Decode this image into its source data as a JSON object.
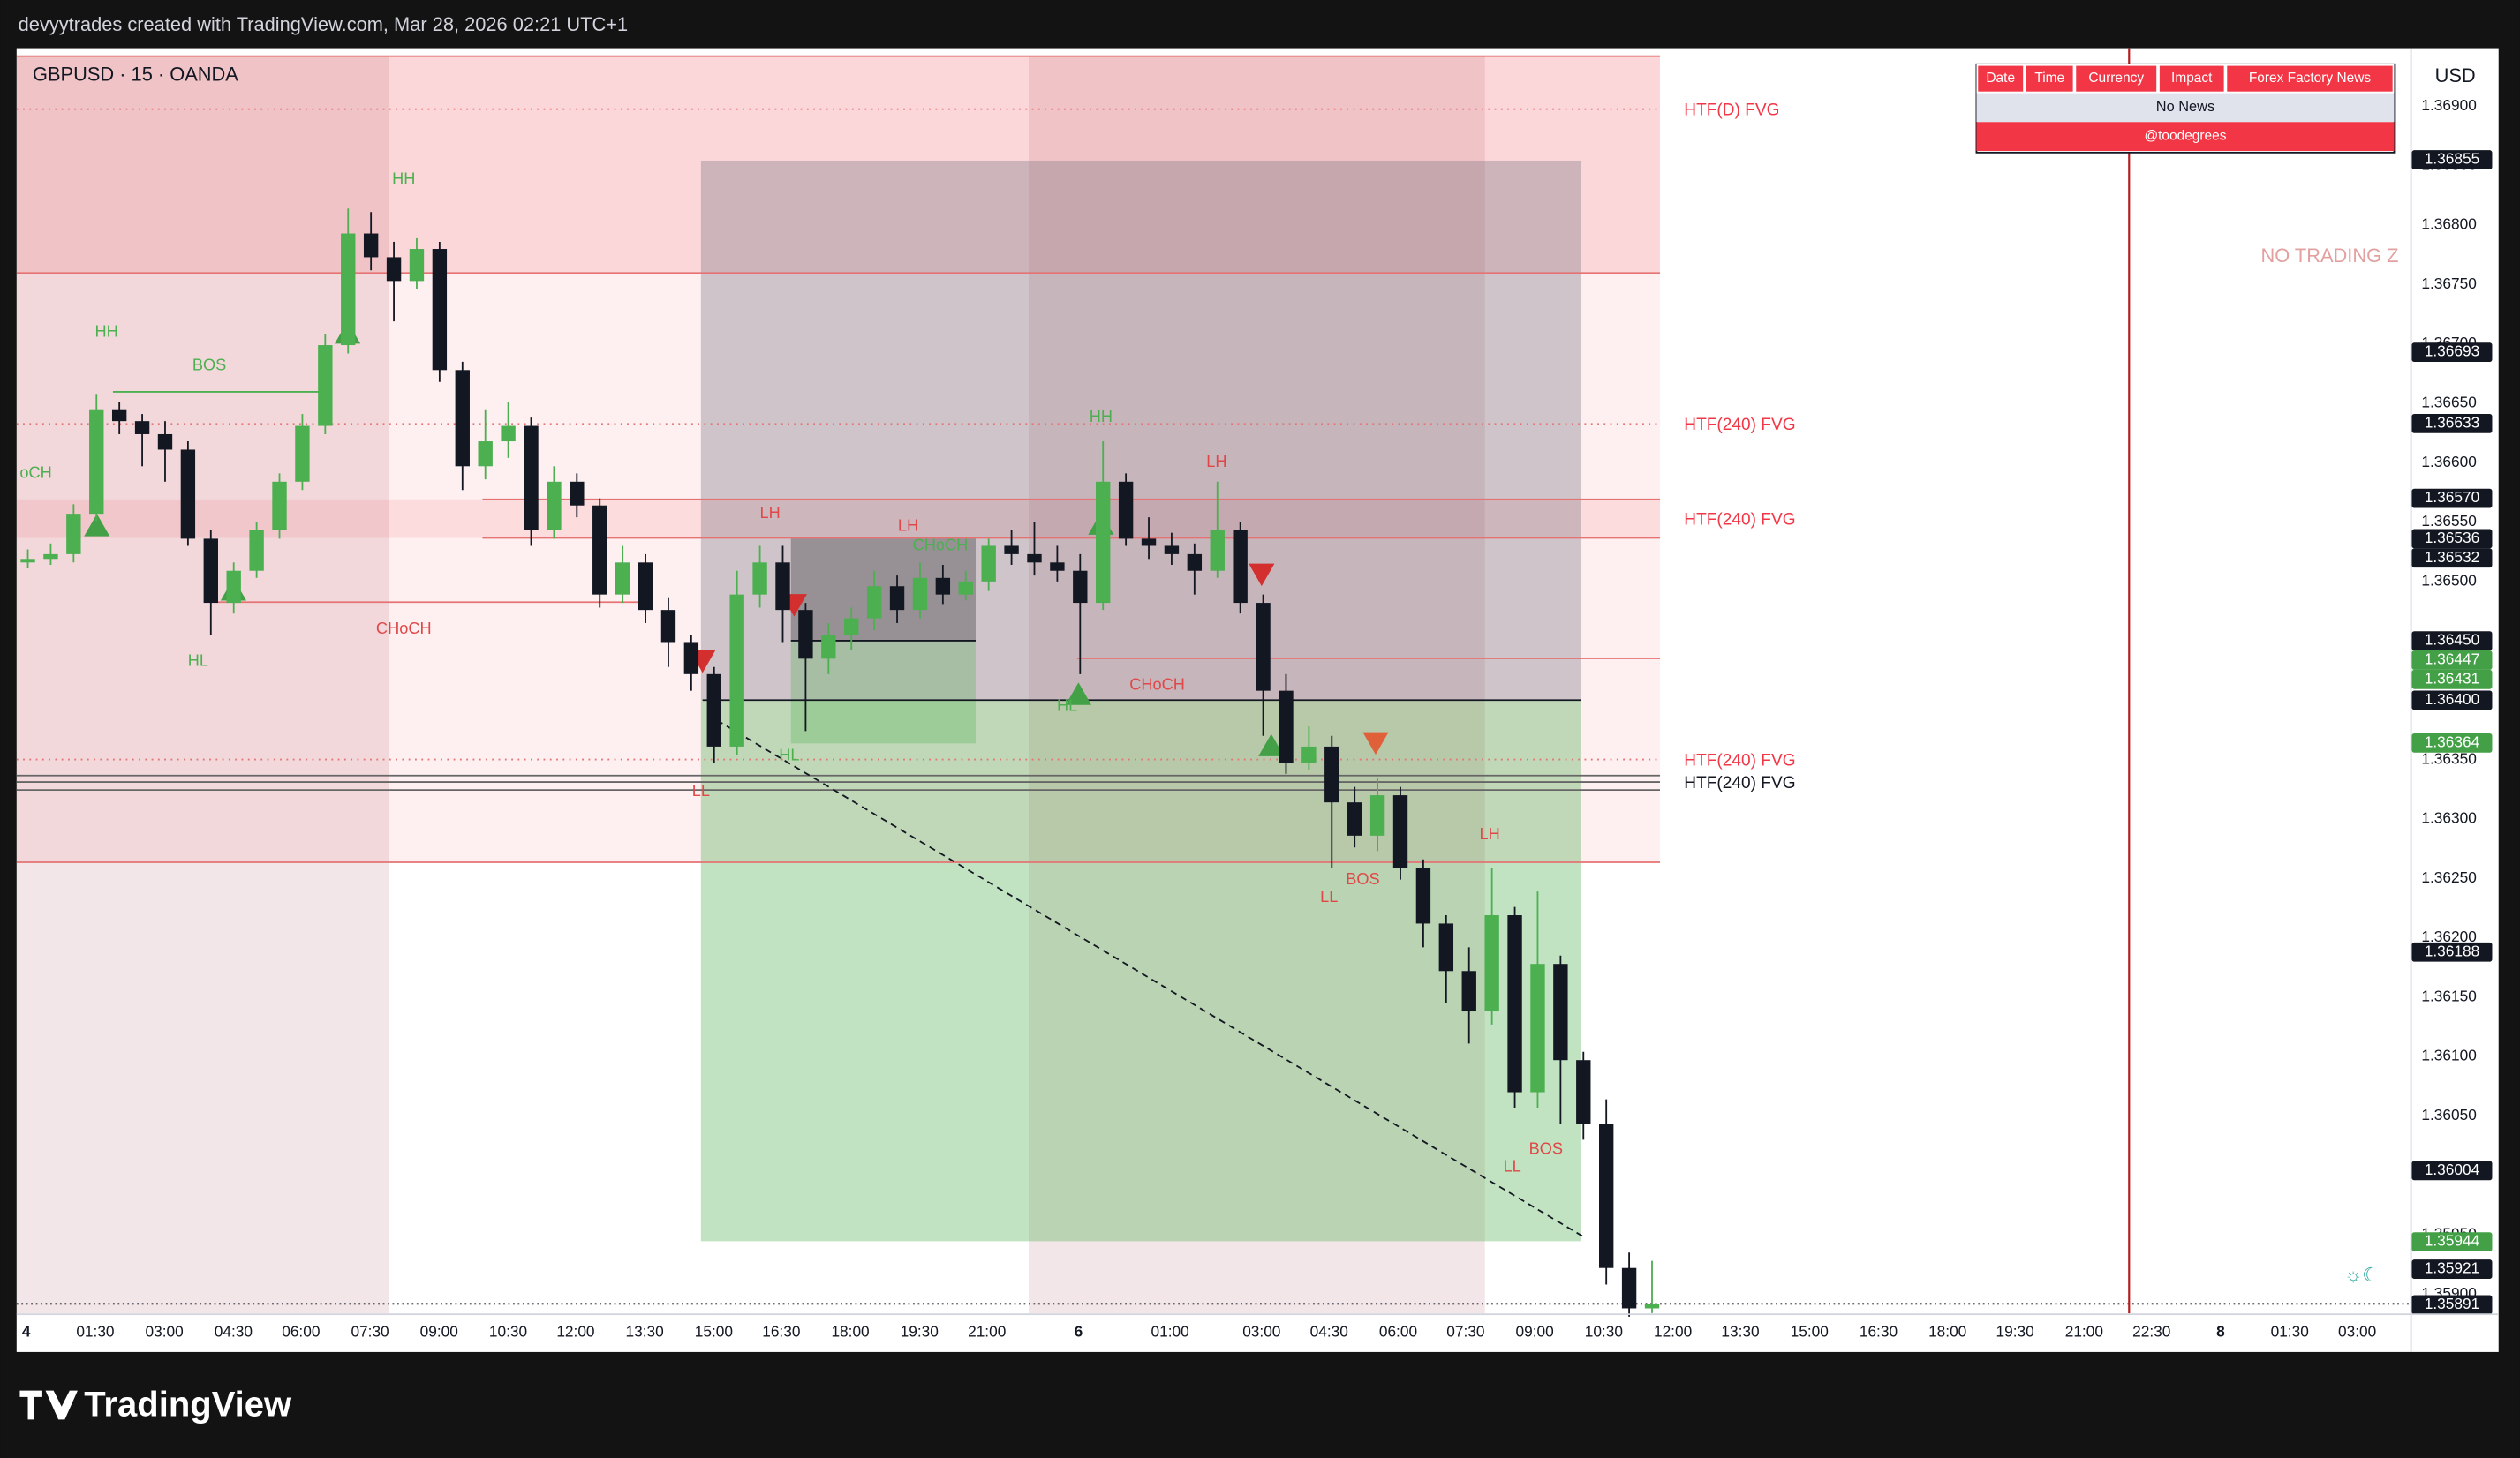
{
  "header": {
    "caption": "devyytrades created with TradingView.com, Mar 28, 2026 02:21 UTC+1",
    "symbol": "GBPUSD · 15 · OANDA",
    "currency": "USD",
    "watermark": "NO TRADING Z"
  },
  "news_table": {
    "columns": [
      "Date",
      "Time",
      "Currency",
      "Impact",
      "Forex Factory News"
    ],
    "rows": [
      [
        "No News"
      ]
    ],
    "footer": "@toodegrees"
  },
  "footer": {
    "logo": "TradingView"
  },
  "chart_data": {
    "type": "candlestick",
    "up_color": "#4caf50",
    "down_color": "#131722",
    "open": [
      1.36516,
      1.36519,
      1.36523,
      1.36557,
      1.36645,
      1.36635,
      1.36624,
      1.36611,
      1.36536,
      1.36482,
      1.36509,
      1.36543,
      1.36584,
      1.36631,
      1.36699,
      1.36793,
      1.36773,
      1.36753,
      1.3678,
      1.36678,
      1.36597,
      1.36618,
      1.36631,
      1.36543,
      1.36584,
      1.36564,
      1.36489,
      1.36516,
      1.36476,
      1.36449,
      1.36422,
      1.36361,
      1.36489,
      1.36516,
      1.36476,
      1.36435,
      1.36455,
      1.36469,
      1.36496,
      1.36476,
      1.36503,
      1.36489,
      1.365,
      1.3653,
      1.36523,
      1.36516,
      1.36509,
      1.36482,
      1.36584,
      1.36536,
      1.3653,
      1.36523,
      1.36509,
      1.36543,
      1.36482,
      1.36408,
      1.36347,
      1.36361,
      1.36314,
      1.36286,
      1.3632,
      1.36259,
      1.36212,
      1.36172,
      1.36138,
      1.36219,
      1.3607,
      1.36178,
      1.36097,
      1.36043,
      1.35922,
      1.35888
    ],
    "high": [
      1.36527,
      1.36532,
      1.36565,
      1.36658,
      1.36651,
      1.36641,
      1.36635,
      1.36618,
      1.36543,
      1.36516,
      1.3655,
      1.36591,
      1.36641,
      1.36708,
      1.36814,
      1.36811,
      1.36786,
      1.36789,
      1.36786,
      1.36685,
      1.36645,
      1.36651,
      1.36638,
      1.36597,
      1.36591,
      1.3657,
      1.3653,
      1.36523,
      1.36486,
      1.36455,
      1.36428,
      1.36509,
      1.3653,
      1.3653,
      1.36482,
      1.36465,
      1.36478,
      1.36509,
      1.36505,
      1.36516,
      1.36514,
      1.36509,
      1.36536,
      1.36543,
      1.3655,
      1.3653,
      1.36523,
      1.36618,
      1.36591,
      1.36554,
      1.36541,
      1.36532,
      1.36584,
      1.3655,
      1.36489,
      1.36422,
      1.36378,
      1.3637,
      1.36327,
      1.36334,
      1.36327,
      1.36266,
      1.36219,
      1.36192,
      1.36259,
      1.36226,
      1.36239,
      1.36185,
      1.36104,
      1.36064,
      1.35935,
      1.35928
    ],
    "low": [
      1.36511,
      1.36514,
      1.36516,
      1.36551,
      1.36624,
      1.36597,
      1.36584,
      1.3653,
      1.36455,
      1.36473,
      1.36503,
      1.36536,
      1.36577,
      1.36624,
      1.36692,
      1.36762,
      1.36719,
      1.36746,
      1.36668,
      1.36577,
      1.36586,
      1.36604,
      1.3653,
      1.36536,
      1.36554,
      1.36478,
      1.36482,
      1.36465,
      1.36428,
      1.36408,
      1.36347,
      1.36354,
      1.36478,
      1.36449,
      1.36374,
      1.36422,
      1.36442,
      1.36459,
      1.36465,
      1.36469,
      1.36481,
      1.36484,
      1.36492,
      1.36514,
      1.36505,
      1.365,
      1.36422,
      1.36476,
      1.3653,
      1.36519,
      1.36514,
      1.36489,
      1.36503,
      1.36473,
      1.3637,
      1.36338,
      1.36341,
      1.36259,
      1.36276,
      1.36273,
      1.36249,
      1.36192,
      1.36145,
      1.36111,
      1.36127,
      1.36057,
      1.36057,
      1.36043,
      1.3603,
      1.35908,
      1.35881,
      1.35884
    ],
    "close": [
      1.36519,
      1.36523,
      1.36557,
      1.36645,
      1.36635,
      1.36624,
      1.36611,
      1.36536,
      1.36482,
      1.36509,
      1.36543,
      1.36584,
      1.36631,
      1.36699,
      1.36793,
      1.36773,
      1.36753,
      1.3678,
      1.36678,
      1.36597,
      1.36618,
      1.36631,
      1.36543,
      1.36584,
      1.36564,
      1.36489,
      1.36516,
      1.36476,
      1.36449,
      1.36422,
      1.36361,
      1.36489,
      1.36516,
      1.36476,
      1.36435,
      1.36455,
      1.36469,
      1.36496,
      1.36476,
      1.36503,
      1.36489,
      1.365,
      1.3653,
      1.36523,
      1.36516,
      1.36509,
      1.36482,
      1.36584,
      1.36536,
      1.3653,
      1.36523,
      1.36509,
      1.36543,
      1.36482,
      1.36408,
      1.36347,
      1.36361,
      1.36314,
      1.36286,
      1.3632,
      1.36259,
      1.36212,
      1.36172,
      1.36138,
      1.36219,
      1.3607,
      1.36178,
      1.36097,
      1.36043,
      1.35922,
      1.35888,
      1.35892
    ],
    "ylim": [
      1.35881,
      1.36949
    ],
    "yticks": [
      {
        "value": 1.359,
        "label": "1.35900"
      },
      {
        "value": 1.3595,
        "label": "1.35950"
      },
      {
        "value": 1.36,
        "label": "1.36000"
      },
      {
        "value": 1.3605,
        "label": "1.36050"
      },
      {
        "value": 1.361,
        "label": "1.36100"
      },
      {
        "value": 1.3615,
        "label": "1.36150"
      },
      {
        "value": 1.362,
        "label": "1.36200"
      },
      {
        "value": 1.3625,
        "label": "1.36250"
      },
      {
        "value": 1.363,
        "label": "1.36300"
      },
      {
        "value": 1.3635,
        "label": "1.36350"
      },
      {
        "value": 1.364,
        "label": "1.36400"
      },
      {
        "value": 1.3645,
        "label": "1.36450"
      },
      {
        "value": 1.365,
        "label": "1.36500"
      },
      {
        "value": 1.3655,
        "label": "1.36550"
      },
      {
        "value": 1.366,
        "label": "1.36600"
      },
      {
        "value": 1.3665,
        "label": "1.36650"
      },
      {
        "value": 1.367,
        "label": "1.36700"
      },
      {
        "value": 1.3675,
        "label": "1.36750"
      },
      {
        "value": 1.368,
        "label": "1.36800"
      },
      {
        "value": 1.3685,
        "label": "1.36850"
      },
      {
        "value": 1.369,
        "label": "1.36900"
      }
    ],
    "time_labels": [
      "4",
      "01:30",
      "03:00",
      "04:30",
      "06:00",
      "07:30",
      "09:00",
      "10:30",
      "12:00",
      "13:30",
      "15:00",
      "16:30",
      "18:00",
      "19:30",
      "21:00",
      "6",
      "01:00",
      "03:00",
      "04:30",
      "06:00",
      "07:30",
      "09:00",
      "10:30",
      "12:00",
      "13:30",
      "15:00",
      "16:30",
      "18:00",
      "19:30",
      "21:00",
      "22:30",
      "8",
      "01:30",
      "03:00"
    ],
    "price_labels": [
      {
        "value": 1.36855,
        "color": "#131722"
      },
      {
        "value": 1.36693,
        "color": "#131722"
      },
      {
        "value": 1.36633,
        "color": "#131722"
      },
      {
        "value": 1.3657,
        "label": "1.36570",
        "color": "#131722"
      },
      {
        "value": 1.36536,
        "color": "#131722"
      },
      {
        "value": 1.36532,
        "color": "#131722"
      },
      {
        "value": 1.3645,
        "label": "1.36450",
        "color": "#131722"
      },
      {
        "value": 1.36447,
        "color": "#43a047"
      },
      {
        "value": 1.36431,
        "color": "#43a047"
      },
      {
        "value": 1.364,
        "label": "1.36400",
        "color": "#131722"
      },
      {
        "value": 1.36364,
        "color": "#43a047"
      },
      {
        "value": 1.36188,
        "color": "#131722"
      },
      {
        "value": 1.36004,
        "color": "#131722"
      },
      {
        "value": 1.35944,
        "color": "#43a047"
      },
      {
        "value": 1.35921,
        "color": "#131722"
      },
      {
        "value": 1.35891,
        "color": "#131722"
      }
    ],
    "zone_labels": [
      "HTF(D) FVG",
      "HTF(240) FVG",
      "HTF(240) FVG",
      "HTF(240) FVG",
      "HTF(240) FVG"
    ],
    "annotations": [
      "HH",
      "HH",
      "BOS",
      "oCH",
      "HL",
      "CHoCH",
      "LH",
      "LH",
      "CHoCH",
      "HL",
      "LL",
      "HH",
      "LH",
      "HL",
      "CHoCH",
      "LH",
      "BOS",
      "LL",
      "LL",
      "BOS"
    ]
  }
}
